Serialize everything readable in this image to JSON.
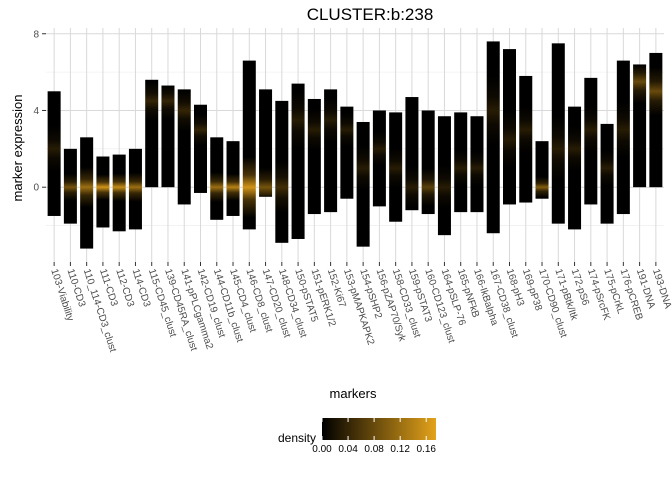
{
  "chart_data": {
    "type": "violin-density-strip",
    "title": "CLUSTER:b:238",
    "xlabel": "markers",
    "ylabel": "marker expression",
    "ylim": [
      -3.9,
      8.3
    ],
    "yticks": [
      0,
      4,
      8
    ],
    "grid": true,
    "categories": [
      "103-Viability",
      "110-CD3",
      "110_114-CD3_clust",
      "111-CD3",
      "112-CD3",
      "114-CD3",
      "115-CD45_clust",
      "139-CD45RA_clust",
      "141-pPLCgamma2",
      "142-CD19_clust",
      "144-CD11b_clust",
      "145-CD4_clust",
      "146-CD8_clust",
      "147-CD20_clust",
      "148-CD34_clust",
      "150-pSTAT5",
      "151-pERK1/2",
      "152-Ki67",
      "153-pMAPKAPK2",
      "154-pSHP2",
      "156-pZAP70/Syk",
      "158-CD33_clust",
      "159-pSTAT3",
      "160-CD123_clust",
      "164-pSLP-76",
      "165-pNFkB",
      "166-IkBalpha",
      "167-CD38_clust",
      "168-pH3",
      "169-pP38",
      "170-CD90_clust",
      "171-pBtk/Itk",
      "172-pS6",
      "174-pSrcFK",
      "175-pCrkL",
      "176-pCREB",
      "191-DNA",
      "193-DNA"
    ],
    "series": [
      {
        "stat": "max",
        "values": [
          5.0,
          2.0,
          2.6,
          1.6,
          1.7,
          2.0,
          5.6,
          5.3,
          5.1,
          4.3,
          2.6,
          2.4,
          6.6,
          5.1,
          4.5,
          5.4,
          4.6,
          5.1,
          4.2,
          3.4,
          4.0,
          3.9,
          4.7,
          4.0,
          3.7,
          3.9,
          3.7,
          7.6,
          7.2,
          5.8,
          2.4,
          7.5,
          4.2,
          5.7,
          3.3,
          6.6,
          6.4,
          7.0
        ]
      },
      {
        "stat": "min",
        "values": [
          -1.5,
          -1.9,
          -3.2,
          -2.1,
          -2.3,
          -2.2,
          0.0,
          0.0,
          -0.9,
          -0.3,
          -1.7,
          -1.5,
          -2.2,
          -0.5,
          -2.9,
          -2.7,
          -1.4,
          -1.3,
          -0.6,
          -3.1,
          -1.0,
          -1.8,
          -1.2,
          -1.4,
          -2.5,
          -1.3,
          -1.3,
          -2.4,
          -0.9,
          -0.8,
          -0.6,
          -1.9,
          -2.2,
          -0.9,
          -1.9,
          -1.4,
          0.0,
          0.0
        ]
      },
      {
        "stat": "median",
        "values": [
          2.0,
          0.0,
          0.0,
          0.0,
          0.0,
          0.0,
          4.5,
          4.5,
          4.0,
          3.0,
          0.0,
          0.0,
          0.0,
          0.0,
          0.0,
          3.5,
          3.0,
          3.5,
          3.0,
          1.0,
          2.0,
          1.0,
          0.0,
          0.0,
          0.0,
          1.0,
          1.0,
          4.0,
          2.5,
          3.0,
          0.0,
          2.0,
          2.0,
          3.0,
          1.0,
          3.0,
          5.5,
          5.0
        ]
      },
      {
        "stat": "peak_density",
        "values": [
          0.03,
          0.09,
          0.12,
          0.16,
          0.15,
          0.12,
          0.04,
          0.04,
          0.04,
          0.04,
          0.12,
          0.14,
          0.16,
          0.09,
          0.05,
          0.03,
          0.03,
          0.03,
          0.03,
          0.03,
          0.03,
          0.03,
          0.03,
          0.07,
          0.03,
          0.03,
          0.03,
          0.03,
          0.03,
          0.03,
          0.1,
          0.03,
          0.03,
          0.03,
          0.03,
          0.03,
          0.08,
          0.08
        ]
      }
    ],
    "legend": {
      "title": "density",
      "placement": "bottom",
      "ticks": [
        "0.00",
        "0.04",
        "0.08",
        "0.12",
        "0.16"
      ],
      "range": [
        0,
        0.175
      ],
      "colors": [
        "#000000",
        "#e3a21a"
      ]
    }
  }
}
